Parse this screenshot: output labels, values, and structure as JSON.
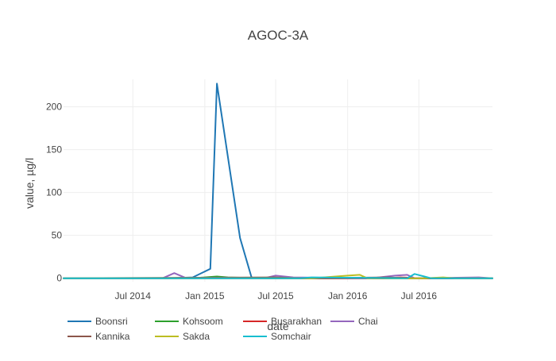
{
  "chart_data": {
    "type": "line",
    "title": "AGOC-3A",
    "xlabel": "date",
    "ylabel": "value, µg/l",
    "ylim": [
      -4,
      232
    ],
    "xlim": [
      "2014-01-05",
      "2017-01-05"
    ],
    "yticks": [
      0,
      50,
      100,
      150,
      200
    ],
    "xticks": [
      {
        "date": "2014-07-01",
        "label": "Jul 2014"
      },
      {
        "date": "2015-01-01",
        "label": "Jan 2015"
      },
      {
        "date": "2015-07-01",
        "label": "Jul 2015"
      },
      {
        "date": "2016-01-01",
        "label": "Jan 2016"
      },
      {
        "date": "2016-07-01",
        "label": "Jul 2016"
      }
    ],
    "grid": true,
    "legend_position": "bottom",
    "series": [
      {
        "name": "Boonsri",
        "color": "#1f77b4",
        "points": [
          [
            "2014-01-05",
            0
          ],
          [
            "2014-10-01",
            0
          ],
          [
            "2014-12-01",
            1
          ],
          [
            "2015-01-15",
            11
          ],
          [
            "2015-02-01",
            227
          ],
          [
            "2015-04-01",
            47
          ],
          [
            "2015-05-01",
            0
          ],
          [
            "2015-09-01",
            0
          ],
          [
            "2016-06-01",
            0
          ],
          [
            "2017-01-05",
            0
          ]
        ]
      },
      {
        "name": "Kohsoom",
        "color": "#2ca02c",
        "points": [
          [
            "2014-01-05",
            0
          ],
          [
            "2014-12-01",
            0
          ],
          [
            "2015-02-01",
            2
          ],
          [
            "2015-03-01",
            1
          ],
          [
            "2015-06-01",
            0
          ],
          [
            "2016-03-01",
            0
          ],
          [
            "2017-01-05",
            0
          ]
        ]
      },
      {
        "name": "Busarakhan",
        "color": "#d62728",
        "points": [
          [
            "2014-01-05",
            0
          ],
          [
            "2015-06-01",
            0
          ],
          [
            "2016-04-01",
            0
          ],
          [
            "2016-05-15",
            1
          ],
          [
            "2016-07-01",
            0
          ],
          [
            "2017-01-05",
            0
          ]
        ]
      },
      {
        "name": "Chai",
        "color": "#9467bd",
        "points": [
          [
            "2014-01-05",
            0
          ],
          [
            "2014-09-15",
            0
          ],
          [
            "2014-10-15",
            6
          ],
          [
            "2014-11-15",
            0
          ],
          [
            "2015-06-01",
            0
          ],
          [
            "2015-07-01",
            3
          ],
          [
            "2015-08-15",
            1
          ],
          [
            "2016-03-01",
            0
          ],
          [
            "2016-05-01",
            3
          ],
          [
            "2016-06-01",
            4
          ],
          [
            "2016-06-20",
            0
          ],
          [
            "2016-12-01",
            1
          ],
          [
            "2017-01-05",
            0
          ]
        ]
      },
      {
        "name": "Kannika",
        "color": "#8c564b",
        "points": [
          [
            "2014-01-05",
            0
          ],
          [
            "2015-07-01",
            1
          ],
          [
            "2015-09-01",
            0
          ],
          [
            "2016-04-15",
            1
          ],
          [
            "2016-06-01",
            0
          ],
          [
            "2017-01-05",
            0
          ]
        ]
      },
      {
        "name": "Sakda",
        "color": "#bcbd22",
        "points": [
          [
            "2014-01-05",
            0
          ],
          [
            "2015-10-01",
            0
          ],
          [
            "2016-01-01",
            3
          ],
          [
            "2016-02-01",
            4
          ],
          [
            "2016-02-20",
            0
          ],
          [
            "2016-06-01",
            0
          ],
          [
            "2016-07-15",
            0
          ],
          [
            "2016-09-01",
            1
          ],
          [
            "2016-10-01",
            0
          ],
          [
            "2017-01-05",
            0
          ]
        ]
      },
      {
        "name": "Somchair",
        "color": "#17becf",
        "points": [
          [
            "2014-01-05",
            0
          ],
          [
            "2015-09-01",
            0
          ],
          [
            "2015-10-01",
            1
          ],
          [
            "2016-06-01",
            0
          ],
          [
            "2016-06-20",
            5
          ],
          [
            "2016-07-15",
            2
          ],
          [
            "2016-08-01",
            0
          ],
          [
            "2017-01-05",
            0
          ]
        ]
      }
    ]
  }
}
